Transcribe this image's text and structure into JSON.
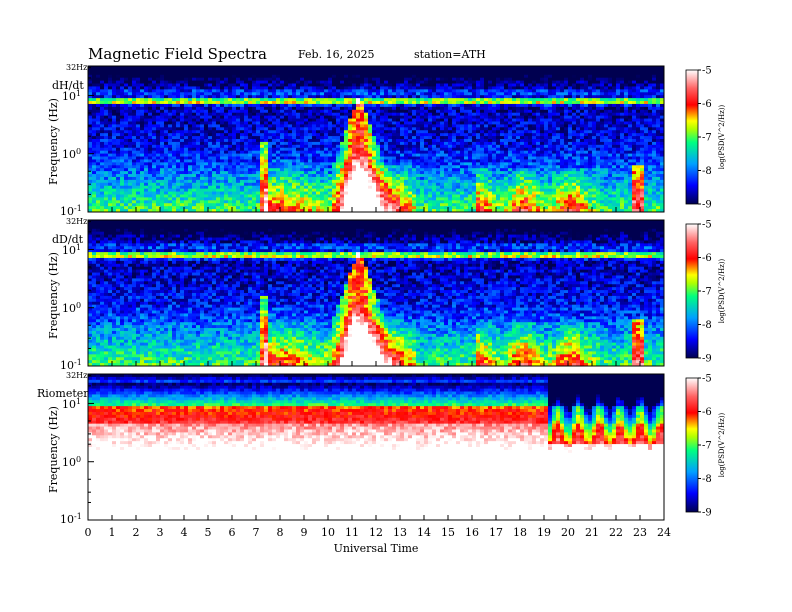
{
  "header": {
    "title": "Magnetic  Field  Spectra",
    "date": "Feb. 16, 2025",
    "station": "station=ATH"
  },
  "chart_data": {
    "type": "heatmap",
    "xlabel": "Universal Time",
    "x_ticks": [
      "0",
      "1",
      "2",
      "3",
      "4",
      "5",
      "6",
      "7",
      "8",
      "9",
      "10",
      "11",
      "12",
      "13",
      "14",
      "15",
      "16",
      "17",
      "18",
      "19",
      "20",
      "21",
      "22",
      "23",
      "24"
    ],
    "xlim": [
      0,
      24
    ],
    "ylim_hz": [
      0.1,
      32
    ],
    "y_scale": "log",
    "ylabel": "Frequency  (Hz)",
    "y_top_label": "32Hz",
    "y_tick_labels": [
      {
        "base": "10",
        "exp": "1",
        "value": 10
      },
      {
        "base": "10",
        "exp": "0",
        "value": 1
      },
      {
        "base": "10",
        "exp": "-1",
        "value": 0.1
      }
    ],
    "colorbar": {
      "label": "log(PSD(V^2/Hz))",
      "ticks": [
        "-5",
        "-6",
        "-7",
        "-8",
        "-9"
      ],
      "range": [
        -9,
        -5
      ],
      "colors": [
        "#000060",
        "#0000ff",
        "#00a0ff",
        "#00ff80",
        "#ffff00",
        "#ff0000",
        "#ffffff"
      ]
    },
    "panels": [
      {
        "name": "dH/dt"
      },
      {
        "name": "dD/dt"
      },
      {
        "name": "Riometer"
      }
    ]
  }
}
